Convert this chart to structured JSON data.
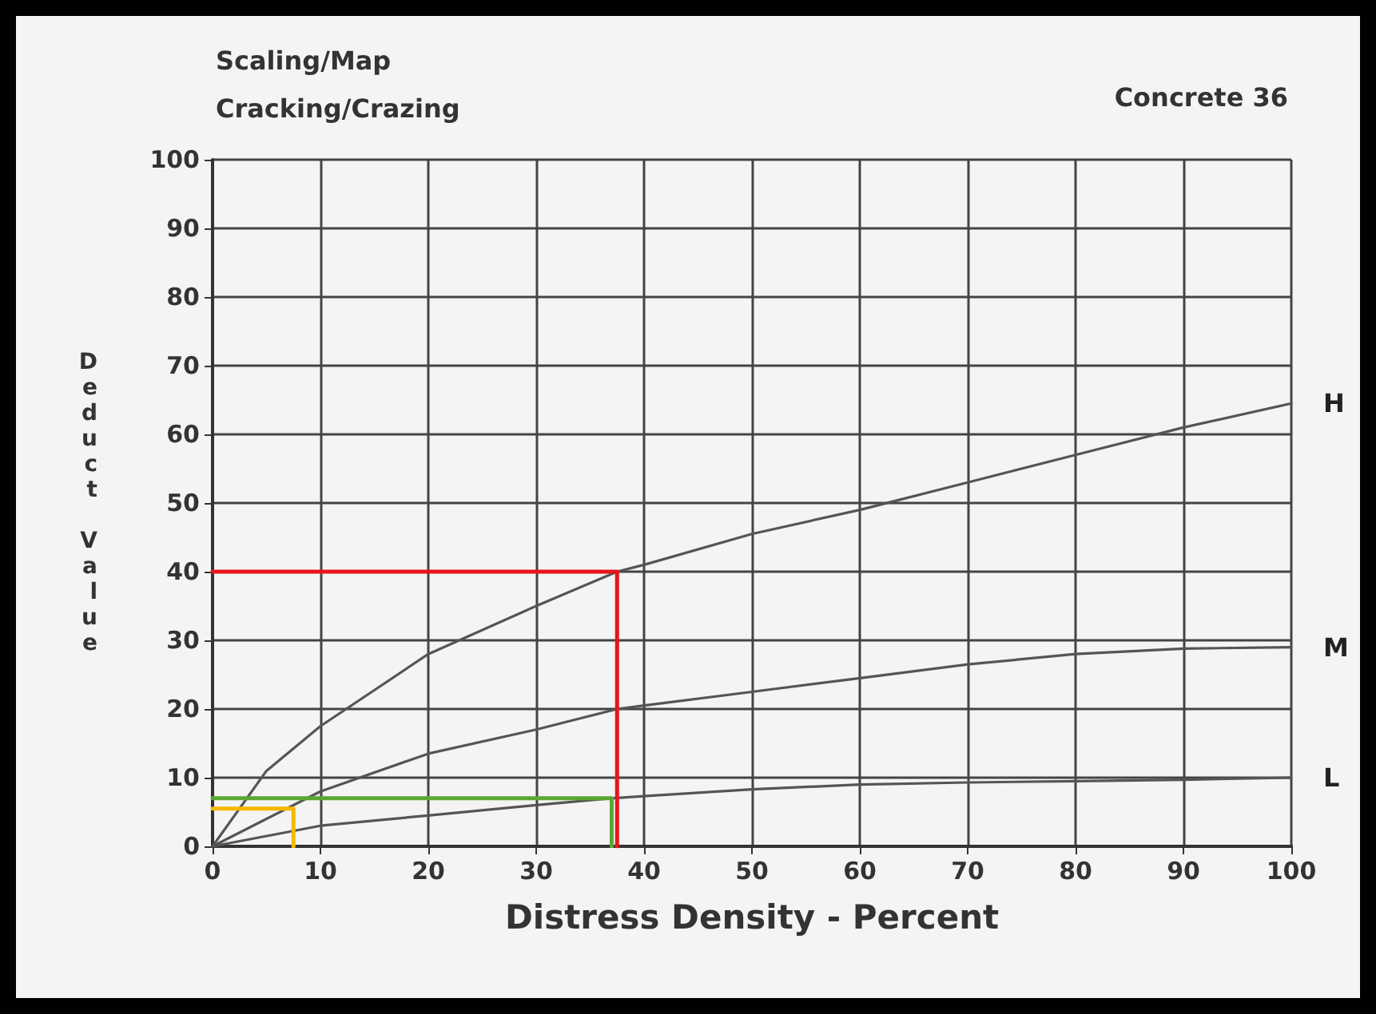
{
  "chart_data": {
    "type": "line",
    "title": "Scaling/Map Cracking/Crazing",
    "subtitle": "Concrete 36",
    "xlabel": "Distress Density - Percent",
    "ylabel": "Deduct Value",
    "xlim": [
      0,
      100
    ],
    "xticks": [
      0,
      10,
      20,
      30,
      40,
      50,
      60,
      70,
      80,
      90,
      100
    ],
    "ylim": [
      0,
      100
    ],
    "yticks": [
      0,
      10,
      20,
      30,
      40,
      50,
      60,
      70,
      80,
      90,
      100
    ],
    "grid": true,
    "legend": false,
    "marker": "none",
    "series": [
      {
        "name": "H",
        "color": "#555555",
        "x": [
          0,
          5,
          10,
          20,
          30,
          37.5,
          40,
          50,
          60,
          70,
          80,
          90,
          100
        ],
        "values": [
          0,
          11,
          17.5,
          28,
          35,
          40,
          41,
          45.5,
          49,
          53,
          57,
          61,
          64.5
        ]
      },
      {
        "name": "M",
        "color": "#555555",
        "x": [
          0,
          10,
          20,
          30,
          37.5,
          40,
          50,
          60,
          70,
          80,
          90,
          100
        ],
        "values": [
          0,
          8,
          13.5,
          17,
          20,
          20.5,
          22.5,
          24.5,
          26.5,
          28,
          28.8,
          29
        ]
      },
      {
        "name": "L",
        "color": "#555555",
        "x": [
          0,
          10,
          20,
          30,
          37,
          40,
          50,
          60,
          70,
          80,
          90,
          100
        ],
        "values": [
          0,
          3,
          4.5,
          6,
          7,
          7.3,
          8.3,
          9,
          9.3,
          9.5,
          9.7,
          10
        ]
      },
      {
        "color": "#e8141b",
        "x": [
          0,
          37.5,
          37.5
        ],
        "values": [
          40,
          40,
          0
        ]
      },
      {
        "color": "#5aa832",
        "x": [
          0,
          37,
          37
        ],
        "values": [
          7,
          7,
          0
        ]
      },
      {
        "color": "#f5b800",
        "x": [
          0,
          7.5,
          7.5
        ],
        "values": [
          5.5,
          5.5,
          0
        ]
      }
    ]
  }
}
